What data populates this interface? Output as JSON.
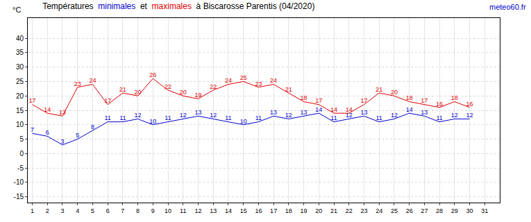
{
  "chart_data": {
    "type": "line",
    "title": "Températures  minimales  et  maximales  à Biscarosse Parentis (04/2020)",
    "source": "meteo60.fr",
    "y_label": "°C",
    "x": [
      1,
      2,
      3,
      4,
      5,
      6,
      7,
      8,
      9,
      10,
      11,
      12,
      13,
      14,
      15,
      16,
      17,
      18,
      19,
      20,
      21,
      22,
      23,
      24,
      25,
      26,
      27,
      28,
      29,
      30
    ],
    "series": [
      {
        "name": "minimales",
        "color": "#0000cc",
        "values": [
          7,
          6,
          3,
          5,
          8,
          11,
          11,
          12,
          10,
          11,
          12,
          13,
          12,
          11,
          10,
          11,
          13,
          12,
          13,
          14,
          11,
          12,
          13,
          11,
          12,
          14,
          13,
          11,
          12,
          12
        ]
      },
      {
        "name": "maximales",
        "color": "#dd0000",
        "values": [
          17,
          14,
          13,
          23,
          24,
          17,
          21,
          20,
          26,
          22,
          20,
          19,
          22,
          24,
          25,
          23,
          24,
          21,
          18,
          17,
          14,
          14,
          17,
          21,
          20,
          18,
          17,
          16,
          18,
          16
        ]
      }
    ],
    "xlim": [
      0.7,
      32
    ],
    "xticks": [
      1,
      2,
      3,
      4,
      5,
      6,
      7,
      8,
      9,
      10,
      11,
      12,
      13,
      14,
      15,
      16,
      17,
      18,
      19,
      20,
      21,
      22,
      23,
      24,
      25,
      26,
      27,
      28,
      29,
      30,
      31
    ],
    "ylim": [
      -17,
      47
    ],
    "yticks": [
      -15,
      -10,
      -5,
      0,
      5,
      10,
      15,
      20,
      25,
      30,
      35,
      40
    ],
    "grid": true,
    "data_labels": true
  }
}
